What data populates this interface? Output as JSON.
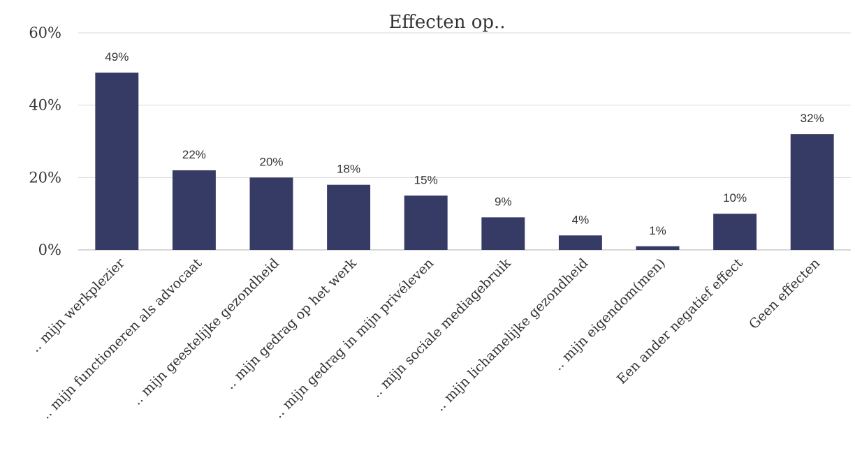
{
  "chart_data": {
    "type": "bar",
    "title": "Effecten op..",
    "categories": [
      ".. mijn werkplezier",
      ".. mijn functioneren als advocaat",
      ".. mijn geestelijke gezondheid",
      ".. mijn gedrag op het werk",
      ".. mijn gedrag in mijn privéleven",
      ".. mijn sociale mediagebruik",
      ".. mijn lichamelijke gezondheid",
      ".. mijn eigendom(men)",
      "Een ander negatief effect",
      "Geen effecten"
    ],
    "values": [
      49,
      22,
      20,
      18,
      15,
      9,
      4,
      1,
      10,
      32
    ],
    "value_labels": [
      "49%",
      "22%",
      "20%",
      "18%",
      "15%",
      "9%",
      "4%",
      "1%",
      "10%",
      "32%"
    ],
    "y_ticks": [
      0,
      20,
      40,
      60
    ],
    "y_tick_labels": [
      "0%",
      "20%",
      "40%",
      "60%"
    ],
    "ylim": [
      0,
      60
    ],
    "grid": true,
    "legend": "none",
    "bar_color": "#363b65"
  }
}
